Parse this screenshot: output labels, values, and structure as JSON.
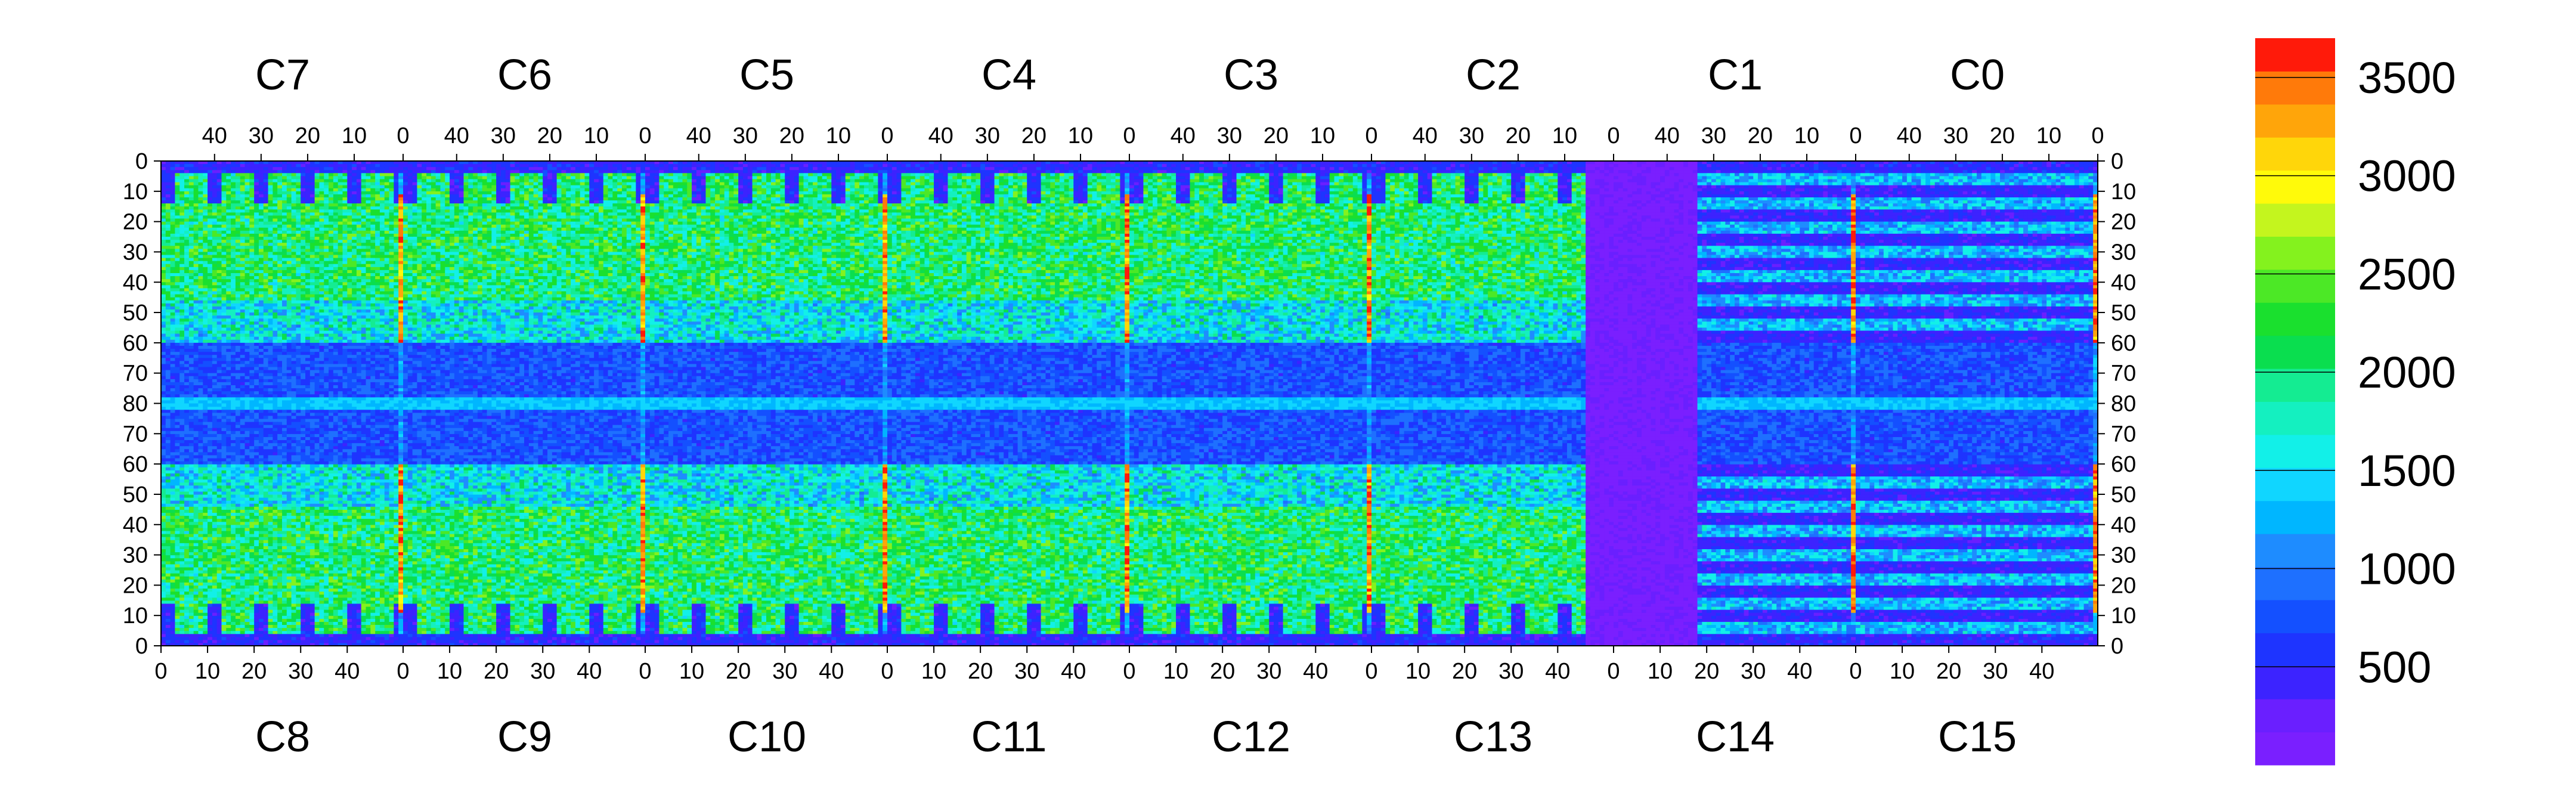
{
  "chart_data": {
    "type": "heatmap",
    "title": "",
    "xlabel": "",
    "ylabel": "",
    "top_chip_labels": [
      "C7",
      "C6",
      "C5",
      "C4",
      "C3",
      "C2",
      "C1",
      "C0"
    ],
    "bottom_chip_labels": [
      "C8",
      "C9",
      "C10",
      "C11",
      "C12",
      "C13",
      "C14",
      "C15"
    ],
    "top_x_tick_labels": [
      "40",
      "30",
      "20",
      "10",
      "0"
    ],
    "bottom_x_tick_labels": [
      "0",
      "10",
      "20",
      "30",
      "40"
    ],
    "left_y_tick_labels": [
      "0",
      "10",
      "20",
      "30",
      "40",
      "50",
      "60",
      "70",
      "80",
      "70",
      "60",
      "50",
      "40",
      "30",
      "20",
      "10",
      "0"
    ],
    "right_y_tick_labels": [
      "0",
      "10",
      "20",
      "30",
      "40",
      "50",
      "60",
      "70",
      "80",
      "70",
      "60",
      "50",
      "40",
      "30",
      "20",
      "10",
      "0"
    ],
    "chip_columns": 52,
    "chip_rows": 80,
    "x_range": [
      0,
      52
    ],
    "y_range": [
      0,
      80
    ],
    "z_range": [
      0,
      3700
    ],
    "colorbar": {
      "ticks": [
        500,
        1000,
        1500,
        2000,
        2500,
        3000,
        3500
      ],
      "tick_labels": [
        "500",
        "1000",
        "1500",
        "2000",
        "2500",
        "3000",
        "3500"
      ],
      "palette": [
        "#7a1fff",
        "#6a1fff",
        "#3c23ff",
        "#1e34ff",
        "#1450ff",
        "#1e70ff",
        "#1e8cff",
        "#00b6ff",
        "#10d6ff",
        "#12f0e8",
        "#14f0c0",
        "#14ec92",
        "#0ade4f",
        "#1ae02e",
        "#4ce826",
        "#84f21e",
        "#c4f51e",
        "#fffa0a",
        "#ffd60a",
        "#ffa50a",
        "#ff7a0a",
        "#ff1a0a"
      ]
    },
    "regions": {
      "active_band_value_range": [
        1500,
        2600
      ],
      "edge_column_value_range": [
        3000,
        3700
      ],
      "low_zone_value_range": [
        0,
        500
      ],
      "center_stripe_value": 1200
    }
  }
}
